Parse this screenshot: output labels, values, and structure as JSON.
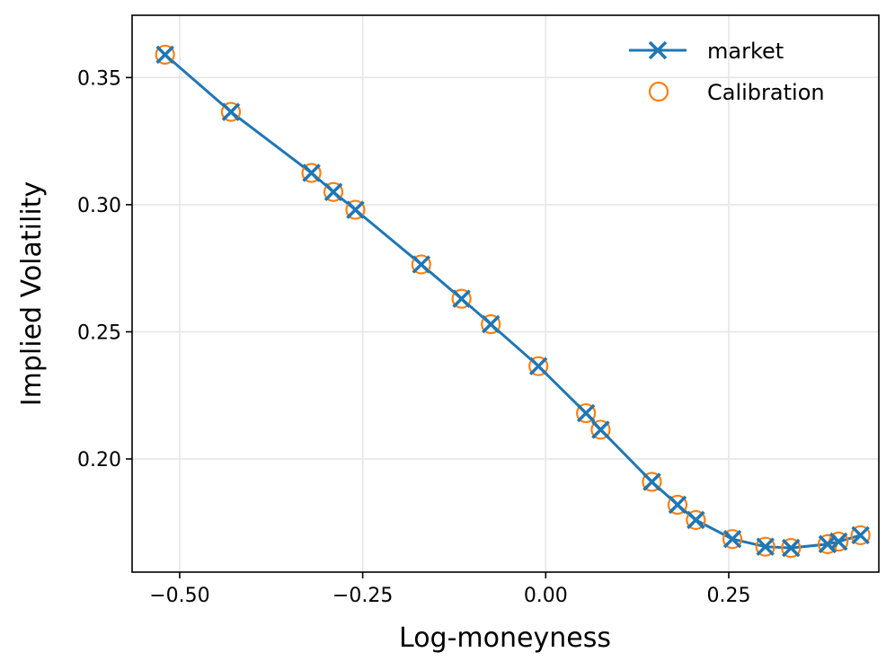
{
  "chart_data": {
    "type": "line",
    "xlabel": "Log-moneyness",
    "ylabel": "Implied Volatility",
    "xlim": [
      -0.565,
      0.455
    ],
    "ylim": [
      0.1555,
      0.3745
    ],
    "grid": true,
    "legend_placement": "top-right",
    "x_ticks": [
      -0.5,
      -0.25,
      0.0,
      0.25
    ],
    "x_tick_labels": [
      "−0.50",
      "−0.25",
      "0.00",
      "0.25"
    ],
    "y_ticks": [
      0.2,
      0.25,
      0.3,
      0.35
    ],
    "y_tick_labels": [
      "0.20",
      "0.25",
      "0.30",
      "0.35"
    ],
    "series": [
      {
        "name": "market",
        "style": "line-x-marker",
        "color": "#1f77b4",
        "x": [
          -0.52,
          -0.43,
          -0.32,
          -0.29,
          -0.26,
          -0.17,
          -0.115,
          -0.075,
          -0.01,
          0.055,
          0.075,
          0.145,
          0.18,
          0.205,
          0.255,
          0.3,
          0.335,
          0.385,
          0.4,
          0.43
        ],
        "y": [
          0.359,
          0.3365,
          0.3125,
          0.305,
          0.298,
          0.2765,
          0.263,
          0.253,
          0.2365,
          0.218,
          0.2115,
          0.191,
          0.182,
          0.176,
          0.1685,
          0.1655,
          0.165,
          0.1665,
          0.1675,
          0.17
        ]
      },
      {
        "name": "Calibration",
        "style": "open-circle",
        "color": "#ff7f0e",
        "x": [
          -0.52,
          -0.43,
          -0.32,
          -0.29,
          -0.26,
          -0.17,
          -0.115,
          -0.075,
          -0.01,
          0.055,
          0.075,
          0.145,
          0.18,
          0.205,
          0.255,
          0.3,
          0.335,
          0.385,
          0.4,
          0.43
        ],
        "y": [
          0.359,
          0.3365,
          0.3125,
          0.305,
          0.298,
          0.2765,
          0.263,
          0.253,
          0.2365,
          0.218,
          0.2115,
          0.191,
          0.182,
          0.176,
          0.1685,
          0.1655,
          0.165,
          0.1665,
          0.1675,
          0.17
        ]
      }
    ]
  }
}
